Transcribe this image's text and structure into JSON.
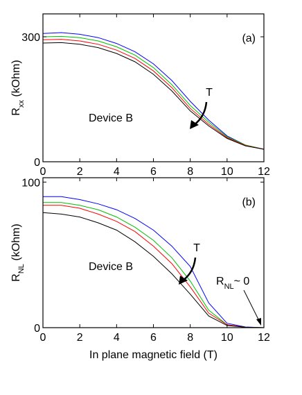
{
  "chart_data": [
    {
      "type": "line",
      "ylabel": [
        "R",
        "xx",
        " (kOhm)"
      ],
      "x": [
        0,
        1,
        2,
        3,
        4,
        5,
        6,
        7,
        8,
        9,
        10,
        11,
        12
      ],
      "series": [
        {
          "color": "#0000ff",
          "values": [
            308,
            310,
            306,
            298,
            284,
            264,
            235,
            195,
            145,
            100,
            62,
            40,
            30
          ]
        },
        {
          "color": "#00c000",
          "values": [
            300,
            301,
            298,
            290,
            276,
            256,
            226,
            185,
            135,
            95,
            60,
            40,
            30
          ]
        },
        {
          "color": "#ff0000",
          "values": [
            293,
            294,
            290,
            282,
            268,
            248,
            218,
            178,
            128,
            90,
            58,
            39,
            30
          ]
        },
        {
          "color": "#000000",
          "values": [
            285,
            286,
            282,
            274,
            260,
            240,
            210,
            170,
            122,
            86,
            56,
            38,
            30
          ]
        }
      ],
      "xlim": [
        0,
        12
      ],
      "ylim": [
        0,
        355
      ],
      "xticks": [
        0,
        2,
        4,
        6,
        8,
        10,
        12
      ],
      "yticks": [
        0,
        300
      ],
      "annotations": [
        "(a)",
        "T",
        "Device B"
      ]
    },
    {
      "type": "line",
      "ylabel": [
        "R",
        "NL",
        " (kOhm)"
      ],
      "xlabel": "In plane magnetic field (T)",
      "x": [
        0,
        1,
        2,
        3,
        4,
        5,
        6,
        7,
        8,
        9,
        10,
        11,
        12
      ],
      "series": [
        {
          "color": "#0000ff",
          "values": [
            90,
            90,
            88,
            85,
            81,
            75,
            67,
            56,
            42,
            17,
            3,
            0.5,
            0
          ]
        },
        {
          "color": "#00c000",
          "values": [
            86,
            86,
            84,
            81,
            76,
            69,
            60,
            48,
            32,
            12,
            2,
            0.3,
            0
          ]
        },
        {
          "color": "#ff0000",
          "values": [
            84,
            84,
            82,
            78,
            73,
            66,
            56,
            44,
            28,
            10,
            2,
            0.3,
            0
          ]
        },
        {
          "color": "#000000",
          "values": [
            79,
            78,
            76,
            72,
            67,
            59,
            49,
            37,
            23,
            8,
            1.5,
            0.3,
            0
          ]
        }
      ],
      "xlim": [
        0,
        12
      ],
      "ylim": [
        0,
        103
      ],
      "xticks": [
        0,
        2,
        4,
        6,
        8,
        10,
        12
      ],
      "yticks": [
        0,
        100
      ],
      "annotations": [
        "(b)",
        "T",
        "Device B"
      ],
      "note": [
        "R",
        "NL",
        "~ 0"
      ]
    }
  ]
}
